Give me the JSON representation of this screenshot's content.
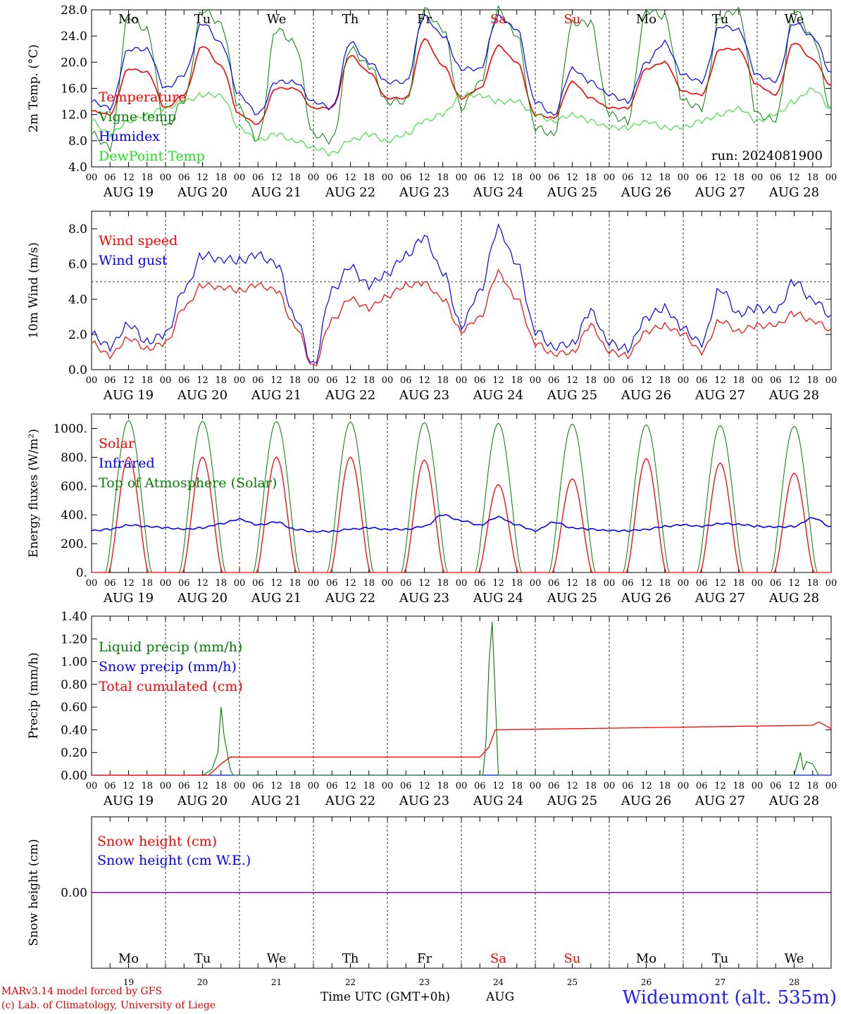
{
  "colors": {
    "red": "#ff0000",
    "blue": "#0000ff",
    "green": "#007f00",
    "lightgreen": "#22dd22",
    "purple": "#8000a0"
  },
  "footer": {
    "credit_line1": "MARv3.14 model forced by GFS",
    "credit_line2": "(c) Lab. of Climatology, University of Liege",
    "station": "Wideumont (alt. 535m)",
    "xaxis_title": "Time UTC (GMT+0h)",
    "month": "AUG"
  },
  "chart_data": [
    {
      "type": "line",
      "ylabel": "2m Temp. (°C)",
      "ylim": [
        4,
        28
      ],
      "yticks": [
        "4.0",
        "8.0",
        "12.0",
        "16.0",
        "20.0",
        "24.0",
        "28.0"
      ],
      "hour_ticks": [
        "00",
        "06",
        "12",
        "18"
      ],
      "date_labels": [
        "AUG 19",
        "AUG 20",
        "AUG 21",
        "AUG 22",
        "AUG 23",
        "AUG 24",
        "AUG 25",
        "AUG 26",
        "AUG 27",
        "AUG 28"
      ],
      "weekdays": [
        {
          "label": "Mo",
          "weekend": false
        },
        {
          "label": "Tu",
          "weekend": false
        },
        {
          "label": "We",
          "weekend": false
        },
        {
          "label": "Th",
          "weekend": false
        },
        {
          "label": "Fr",
          "weekend": false
        },
        {
          "label": "Sa",
          "weekend": true
        },
        {
          "label": "Su",
          "weekend": true
        },
        {
          "label": "Mo",
          "weekend": false
        },
        {
          "label": "Tu",
          "weekend": false
        },
        {
          "label": "We",
          "weekend": false
        }
      ],
      "annotation": "run: 2024081900",
      "x_hours": [
        0,
        6,
        12,
        18,
        24,
        30,
        36,
        42,
        48,
        54,
        60,
        66,
        72,
        78,
        84,
        90,
        96,
        102,
        108,
        114,
        120,
        126,
        132,
        138,
        144,
        150,
        156,
        162,
        168,
        174,
        180,
        186,
        192,
        198,
        204,
        210,
        216,
        222,
        228,
        234,
        240
      ],
      "series": [
        {
          "name": "Temperature",
          "color": "red",
          "values": [
            12.5,
            12,
            19,
            18.5,
            13,
            15,
            22.5,
            19.5,
            12,
            10.5,
            16,
            16,
            13,
            13,
            21,
            18.5,
            14.5,
            14.5,
            23.5,
            19.5,
            14.5,
            16,
            22.5,
            20,
            12,
            11.5,
            17,
            14.5,
            13,
            13,
            19,
            20,
            15.5,
            15,
            22,
            22,
            16.5,
            15,
            23,
            20.5,
            16.5
          ]
        },
        {
          "name": "Vigne temp",
          "color": "green",
          "values": [
            9,
            7,
            27,
            25,
            10,
            14,
            28,
            26,
            13,
            8,
            25,
            23,
            9,
            8,
            22,
            19.5,
            14,
            14,
            28,
            25,
            13,
            17,
            28,
            24,
            10,
            9,
            26,
            26,
            12,
            11,
            28,
            27,
            14,
            13,
            27,
            28,
            12,
            11,
            28,
            24,
            13
          ]
        },
        {
          "name": "Humidex",
          "color": "blue",
          "values": [
            14,
            13,
            22,
            22,
            16,
            18,
            26,
            23,
            15,
            12,
            17,
            17,
            14,
            13,
            23,
            20,
            17,
            17,
            27,
            24,
            19,
            19,
            27,
            25,
            14,
            12,
            19,
            17,
            15,
            14,
            20,
            23,
            18,
            17,
            25.5,
            25,
            18,
            17,
            26,
            24,
            18.5
          ]
        },
        {
          "name": "DewPoint Temp",
          "color": "lightgreen",
          "values": [
            11,
            9,
            11,
            12,
            13,
            14,
            15,
            15,
            10,
            8,
            9,
            8,
            7,
            6,
            8,
            9,
            8,
            9,
            11,
            12,
            15,
            15,
            14,
            14,
            12,
            11,
            12,
            11,
            10,
            10,
            11,
            10,
            10,
            11,
            12,
            13,
            11,
            12,
            14,
            16,
            13
          ]
        }
      ]
    },
    {
      "type": "line",
      "ylabel": "10m Wind (m/s)",
      "ylim": [
        0,
        9
      ],
      "yticks": [
        "0.0",
        "2.0",
        "4.0",
        "6.0",
        "8.0"
      ],
      "reference_line": 5,
      "date_labels": [
        "AUG 19",
        "AUG 20",
        "AUG 21",
        "AUG 22",
        "AUG 23",
        "AUG 24",
        "AUG 25",
        "AUG 26",
        "AUG 27",
        "AUG 28"
      ],
      "x_hours": [
        0,
        6,
        12,
        18,
        24,
        30,
        36,
        42,
        48,
        54,
        60,
        66,
        72,
        78,
        84,
        90,
        96,
        102,
        108,
        114,
        120,
        126,
        132,
        138,
        144,
        150,
        156,
        162,
        168,
        174,
        180,
        186,
        192,
        198,
        204,
        210,
        216,
        222,
        228,
        234,
        240
      ],
      "series": [
        {
          "name": "Wind speed",
          "color": "red",
          "values": [
            1.5,
            0.8,
            1.8,
            1.2,
            1.5,
            3.5,
            4.8,
            4.7,
            4.5,
            4.8,
            4.5,
            2.5,
            0.2,
            2.8,
            4,
            3.5,
            4.2,
            4.8,
            4.9,
            4,
            2.2,
            3,
            5.5,
            4,
            1.5,
            0.9,
            1,
            2.5,
            1,
            0.8,
            2.2,
            2.5,
            2,
            1,
            2.8,
            2.2,
            2.5,
            2.5,
            3.2,
            2.8,
            2.3
          ]
        },
        {
          "name": "Wind gust",
          "color": "blue",
          "values": [
            2,
            1.3,
            2.6,
            1.6,
            2,
            4.5,
            6.5,
            6.3,
            6.2,
            6.5,
            6,
            3,
            0.3,
            4.5,
            5.8,
            4.8,
            5.5,
            6.5,
            7.5,
            5.5,
            2.5,
            4.5,
            8,
            6,
            2.2,
            1.3,
            1.5,
            3.3,
            1.5,
            1.2,
            3,
            3.5,
            2.3,
            1.5,
            4.6,
            3.2,
            3.5,
            3.3,
            5,
            4,
            3.1
          ]
        }
      ]
    },
    {
      "type": "line",
      "ylabel": "Energy fluxes (W/m²)",
      "ylim": [
        0,
        1100
      ],
      "yticks": [
        "0.",
        "200.",
        "400.",
        "600.",
        "800.",
        "1000."
      ],
      "date_labels": [
        "AUG 19",
        "AUG 20",
        "AUG 21",
        "AUG 22",
        "AUG 23",
        "AUG 24",
        "AUG 25",
        "AUG 26",
        "AUG 27",
        "AUG 28"
      ],
      "solar_peaks": [
        800,
        800,
        800,
        800,
        780,
        610,
        650,
        790,
        760,
        690
      ],
      "toa_peaks": [
        1055,
        1050,
        1048,
        1045,
        1040,
        1035,
        1030,
        1025,
        1020,
        1015
      ],
      "infrared": [
        290,
        300,
        330,
        320,
        310,
        300,
        310,
        340,
        370,
        330,
        350,
        300,
        285,
        285,
        300,
        310,
        300,
        300,
        320,
        400,
        360,
        330,
        385,
        330,
        290,
        350,
        310,
        300,
        290,
        290,
        300,
        320,
        330,
        320,
        340,
        335,
        320,
        315,
        320,
        380,
        320
      ],
      "series": [
        {
          "name": "Solar",
          "color": "red"
        },
        {
          "name": "Infrared",
          "color": "blue"
        },
        {
          "name": "Top of Atmosphere (Solar)",
          "color": "green"
        }
      ]
    },
    {
      "type": "line",
      "ylabel": "Precip (mm/h)",
      "ylim": [
        0,
        1.4
      ],
      "yticks": [
        "0.00",
        "0.20",
        "0.40",
        "0.60",
        "0.80",
        "1.00",
        "1.20",
        "1.40"
      ],
      "date_labels": [
        "AUG 19",
        "AUG 20",
        "AUG 21",
        "AUG 22",
        "AUG 23",
        "AUG 24",
        "AUG 25",
        "AUG 26",
        "AUG 27",
        "AUG 28"
      ],
      "liquid": [
        [
          36,
          0
        ],
        [
          39,
          0.05
        ],
        [
          41,
          0.2
        ],
        [
          42,
          0.6
        ],
        [
          43,
          0.35
        ],
        [
          45,
          0.05
        ],
        [
          46,
          0
        ],
        [
          127,
          0
        ],
        [
          128,
          0.3
        ],
        [
          129,
          1.0
        ],
        [
          130,
          1.35
        ],
        [
          131,
          0.7
        ],
        [
          132,
          0
        ],
        [
          228,
          0
        ],
        [
          230,
          0.2
        ],
        [
          231,
          0.05
        ],
        [
          232,
          0.12
        ],
        [
          234,
          0.1
        ],
        [
          236,
          0
        ]
      ],
      "cumulated": [
        [
          0,
          0
        ],
        [
          38,
          0
        ],
        [
          42,
          0.1
        ],
        [
          45,
          0.16
        ],
        [
          126,
          0.16
        ],
        [
          129,
          0.25
        ],
        [
          131,
          0.4
        ],
        [
          240,
          0.41
        ],
        [
          234,
          0.44
        ],
        [
          236,
          0.47
        ],
        [
          240,
          0.48
        ]
      ],
      "series": [
        {
          "name": "Liquid precip (mm/h)",
          "color": "green"
        },
        {
          "name": "Snow precip (mm/h)",
          "color": "blue"
        },
        {
          "name": "Total cumulated (cm)",
          "color": "red"
        }
      ]
    },
    {
      "type": "line",
      "ylabel": "Snow height (cm)",
      "ylim": [
        -1,
        1
      ],
      "yticks": [
        "0.00"
      ],
      "day_numbers": [
        "19",
        "20",
        "21",
        "22",
        "23",
        "24",
        "25",
        "26",
        "27",
        "28"
      ],
      "series": [
        {
          "name": "Snow height (cm)",
          "color": "red",
          "values": [
            0
          ]
        },
        {
          "name": "Snow height (cm W.E.)",
          "color": "blue",
          "values": [
            0
          ]
        }
      ]
    }
  ]
}
